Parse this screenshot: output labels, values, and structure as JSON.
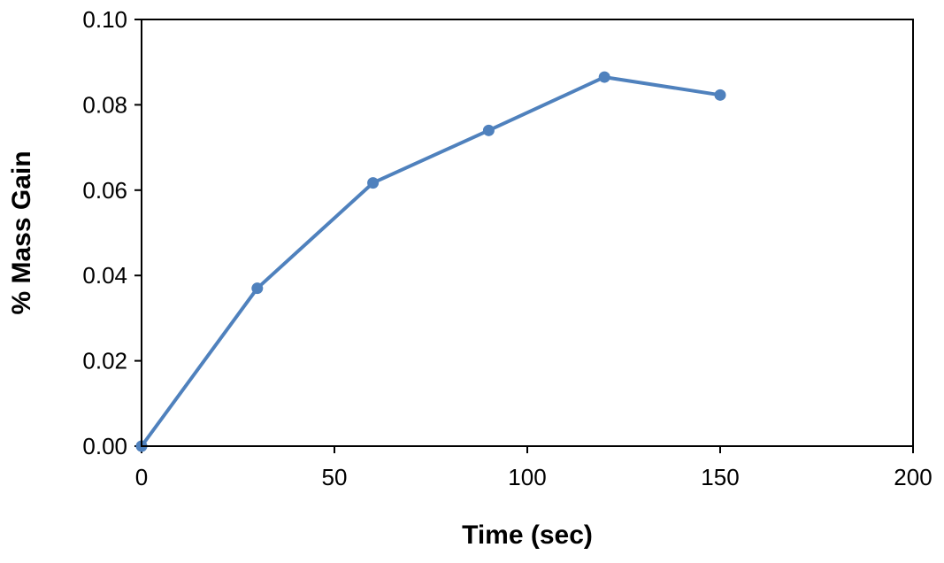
{
  "chart_data": {
    "type": "line",
    "title": "",
    "xlabel": "Time (sec)",
    "ylabel": "% Mass Gain",
    "xlim": [
      0,
      200
    ],
    "ylim": [
      0,
      0.1
    ],
    "x_ticks": [
      0,
      50,
      100,
      150,
      200
    ],
    "x_tick_labels": [
      "0",
      "50",
      "100",
      "150",
      "200"
    ],
    "y_ticks": [
      0,
      0.02,
      0.04,
      0.06,
      0.08,
      0.1
    ],
    "y_tick_labels": [
      "0.00",
      "0.02",
      "0.04",
      "0.06",
      "0.08",
      "0.10"
    ],
    "grid": false,
    "legend": "none",
    "series": [
      {
        "color": "#4f81bd",
        "marker": "circle",
        "x": [
          0,
          30,
          60,
          90,
          120,
          150
        ],
        "y": [
          0.0,
          0.037,
          0.0617,
          0.074,
          0.0865,
          0.0823
        ]
      }
    ]
  }
}
